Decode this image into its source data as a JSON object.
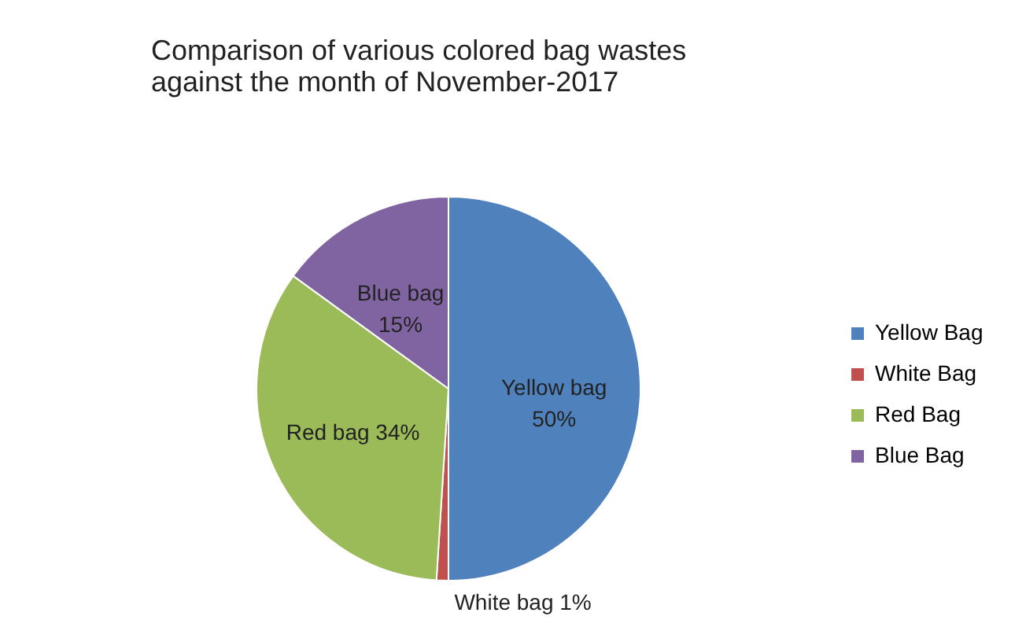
{
  "chart_data": {
    "type": "pie",
    "title": "Comparison of various colored bag wastes against the month of November-2017",
    "categories": [
      "Yellow Bag",
      "White Bag",
      "Red Bag",
      "Blue Bag"
    ],
    "values": [
      50,
      1,
      34,
      15
    ],
    "colors": [
      "#4f81bd",
      "#c0504d",
      "#9bbb59",
      "#8064a2"
    ],
    "value_labels": [
      "Yellow bag\n50%",
      "White bag 1%",
      "Red bag  34%",
      "Blue bag\n15%"
    ],
    "legend": "right"
  }
}
